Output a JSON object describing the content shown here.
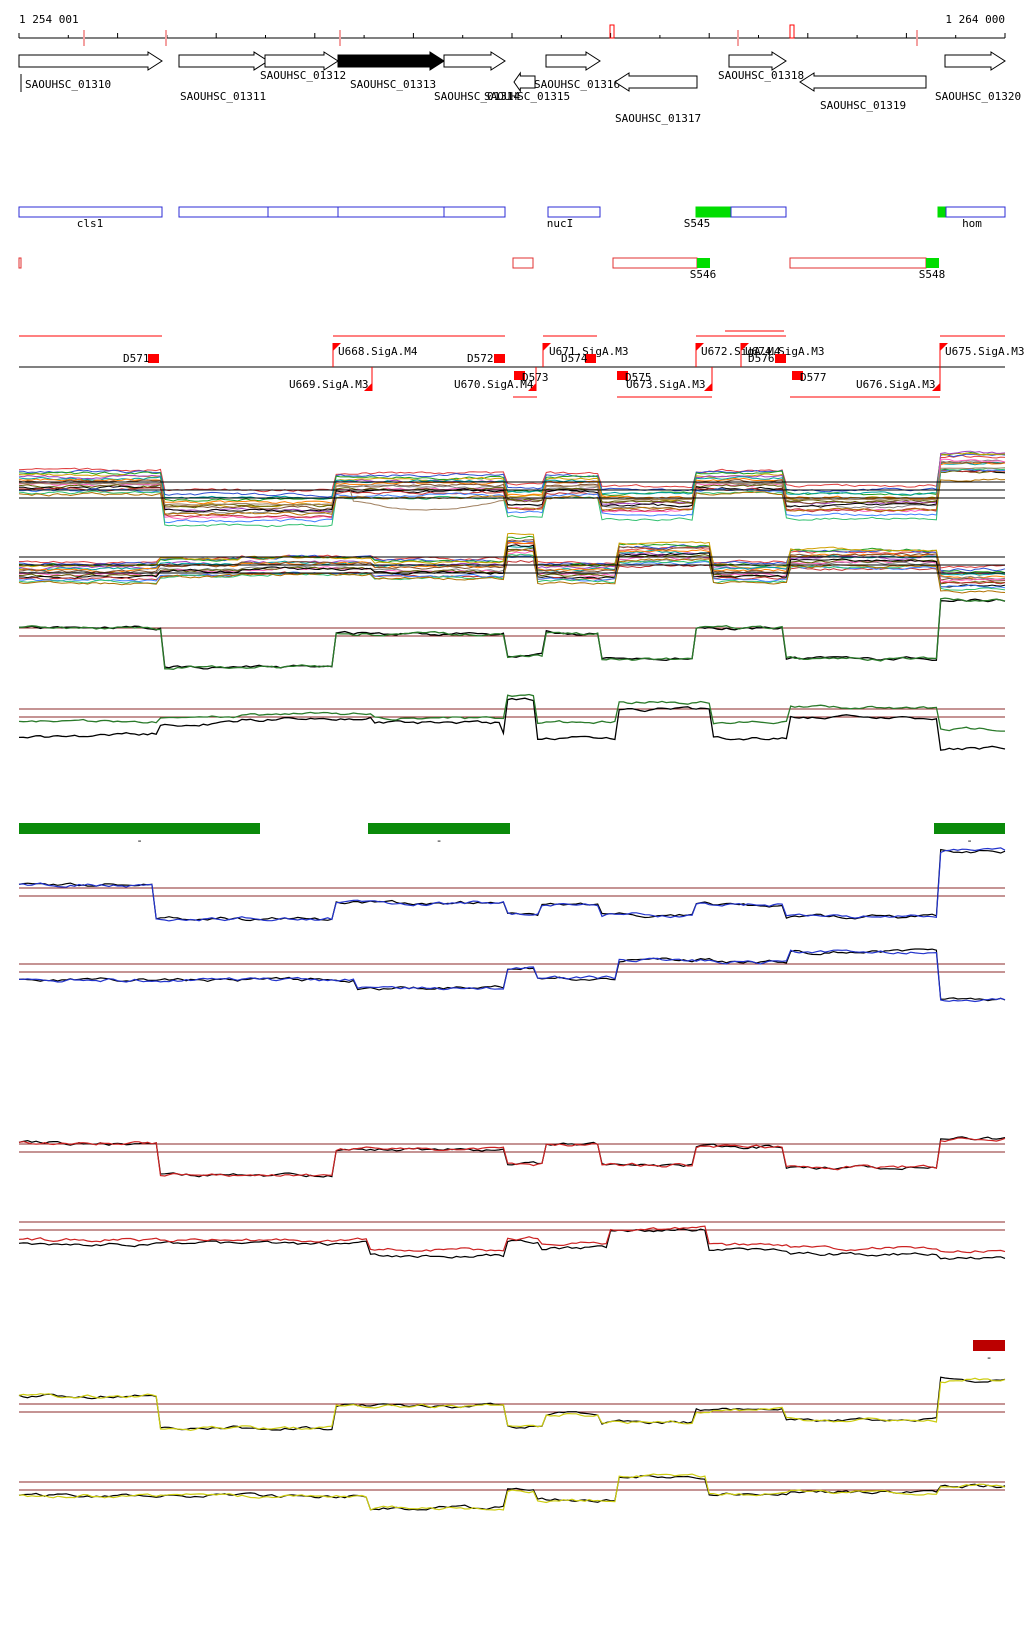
{
  "ruler": {
    "start_label": "1 254 001",
    "end_label": "1 264 000"
  },
  "genes": [
    {
      "label": "SAOUHSC_01310",
      "strand": "+"
    },
    {
      "label": "SAOUHSC_01311",
      "strand": "+"
    },
    {
      "label": "SAOUHSC_01312",
      "strand": "+"
    },
    {
      "label": "SAOUHSC_01313",
      "strand": "+",
      "highlighted": true
    },
    {
      "label": "SAOUHSC_01314",
      "strand": "+"
    },
    {
      "label": "SAOUHSC_01315",
      "strand": "-"
    },
    {
      "label": "SAOUHSC_01316",
      "strand": "+"
    },
    {
      "label": "SAOUHSC_01317",
      "strand": "-"
    },
    {
      "label": "SAOUHSC_01318",
      "strand": "+"
    },
    {
      "label": "SAOUHSC_01319",
      "strand": "-"
    },
    {
      "label": "SAOUHSC_01320",
      "strand": "+"
    }
  ],
  "operons_plus": [
    "cls1",
    "nucI",
    "S545",
    "hom"
  ],
  "operons_minus": [
    "S546",
    "S548"
  ],
  "promoters": {
    "up": [
      "U668.SigA.M4",
      "U671.SigA.M3",
      "U672.SigA.M4",
      "U674.SigA.M3",
      "U675.SigA.M3"
    ],
    "down": [
      "U669.SigA.M3",
      "U670.SigA.M4",
      "U673.SigA.M3",
      "U676.SigA.M3"
    ]
  },
  "terminators": [
    "D571",
    "D572",
    "D573",
    "D574",
    "D575",
    "D576",
    "D577"
  ],
  "track_colors": {
    "structure": "#000000",
    "gene_highlight": "#000000",
    "operon_plus": "#2b2bd4",
    "operon_minus": "#e03030",
    "feature_fill": "#00dd00",
    "signal_marker": "#ff0000",
    "mean_signal": "#2a7a2a",
    "green_bar": "#0a8a0a",
    "blue_signal": "#2233cc",
    "red_signal": "#cc2222",
    "red_bar": "#bb0000",
    "yellow_signal": "#cccc10",
    "threshold": "#8b2a2a"
  },
  "segment_bars": {
    "green": [
      "-",
      "-",
      "-"
    ],
    "red": [
      "-"
    ]
  }
}
